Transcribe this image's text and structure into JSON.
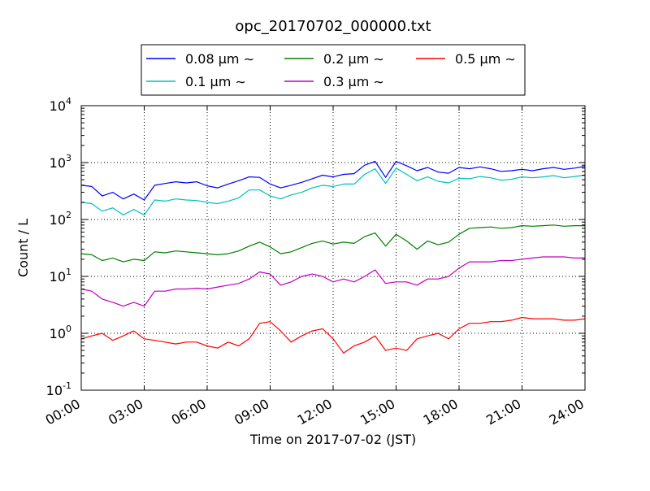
{
  "chart_data": {
    "type": "line",
    "title": "opc_20170702_000000.txt",
    "xlabel": "Time on 2017-07-02 (JST)",
    "ylabel": "Count / L",
    "y_scale": "log",
    "ylim": [
      0.1,
      10000
    ],
    "xlim": [
      "00:00",
      "24:00"
    ],
    "grid": true,
    "legend_position": "top, outside plot",
    "x_tick_labels": [
      "00:00",
      "03:00",
      "06:00",
      "09:00",
      "12:00",
      "15:00",
      "18:00",
      "21:00",
      "24:00"
    ],
    "y_tick_labels": [
      {
        "base": "10",
        "exp": "-1"
      },
      {
        "base": "10",
        "exp": "0"
      },
      {
        "base": "10",
        "exp": "1"
      },
      {
        "base": "10",
        "exp": "2"
      },
      {
        "base": "10",
        "exp": "3"
      },
      {
        "base": "10",
        "exp": "4"
      }
    ],
    "x": [
      "00:00",
      "00:30",
      "01:00",
      "01:30",
      "02:00",
      "02:30",
      "03:00",
      "03:30",
      "04:00",
      "04:30",
      "05:00",
      "05:30",
      "06:00",
      "06:30",
      "07:00",
      "07:30",
      "08:00",
      "08:30",
      "09:00",
      "09:30",
      "10:00",
      "10:30",
      "11:00",
      "11:30",
      "12:00",
      "12:30",
      "13:00",
      "13:30",
      "14:00",
      "14:30",
      "15:00",
      "15:30",
      "16:00",
      "16:30",
      "17:00",
      "17:30",
      "18:00",
      "18:30",
      "19:00",
      "19:30",
      "20:00",
      "20:30",
      "21:00",
      "21:30",
      "22:00",
      "22:30",
      "23:00",
      "23:30",
      "24:00"
    ],
    "series": [
      {
        "name": "0.08 μm ∼",
        "color": "#0000ff",
        "values": [
          400,
          380,
          260,
          300,
          230,
          280,
          220,
          400,
          430,
          460,
          440,
          460,
          390,
          360,
          420,
          480,
          560,
          550,
          420,
          360,
          400,
          450,
          520,
          600,
          560,
          620,
          640,
          900,
          1050,
          550,
          1050,
          880,
          720,
          820,
          680,
          650,
          820,
          780,
          840,
          780,
          700,
          720,
          760,
          720,
          780,
          820,
          760,
          800,
          860
        ]
      },
      {
        "name": "0.1 μm ∼",
        "color": "#00bfbf",
        "values": [
          200,
          190,
          140,
          160,
          120,
          150,
          120,
          220,
          210,
          230,
          220,
          215,
          200,
          190,
          210,
          240,
          330,
          330,
          260,
          230,
          270,
          300,
          360,
          400,
          380,
          420,
          420,
          620,
          780,
          430,
          800,
          620,
          480,
          560,
          470,
          440,
          530,
          520,
          570,
          540,
          490,
          510,
          560,
          540,
          560,
          590,
          540,
          570,
          600
        ]
      },
      {
        "name": "0.2 μm ∼",
        "color": "#008000",
        "values": [
          25,
          24,
          19,
          21,
          18,
          20,
          19,
          27,
          26,
          28,
          27,
          26,
          25,
          24,
          25,
          28,
          34,
          40,
          33,
          25,
          27,
          32,
          38,
          42,
          37,
          40,
          38,
          50,
          58,
          34,
          55,
          42,
          30,
          42,
          36,
          40,
          55,
          70,
          72,
          74,
          70,
          72,
          78,
          76,
          78,
          80,
          76,
          78,
          78
        ]
      },
      {
        "name": "0.3 μm ∼",
        "color": "#bf00bf",
        "values": [
          6,
          5.5,
          4,
          3.5,
          3,
          3.5,
          3,
          5.5,
          5.5,
          6,
          6,
          6.2,
          6,
          6.5,
          7,
          7.5,
          9,
          12,
          11,
          7,
          8,
          10,
          11,
          10,
          8,
          9,
          8,
          10,
          13,
          7.5,
          8,
          8,
          7,
          9,
          9,
          10,
          14,
          18,
          18,
          18,
          19,
          19,
          20,
          21,
          22,
          22,
          22,
          21,
          21
        ]
      },
      {
        "name": "0.5 μm ∼",
        "color": "#ff0000",
        "values": [
          0.8,
          0.9,
          1.0,
          0.75,
          0.9,
          1.1,
          0.8,
          0.75,
          0.7,
          0.65,
          0.7,
          0.7,
          0.6,
          0.55,
          0.7,
          0.6,
          0.8,
          1.5,
          1.6,
          1.1,
          0.7,
          0.9,
          1.1,
          1.2,
          0.8,
          0.45,
          0.6,
          0.7,
          0.9,
          0.5,
          0.55,
          0.5,
          0.8,
          0.9,
          1.0,
          0.8,
          1.2,
          1.5,
          1.5,
          1.6,
          1.6,
          1.7,
          1.9,
          1.8,
          1.8,
          1.8,
          1.7,
          1.7,
          1.8
        ]
      }
    ]
  }
}
